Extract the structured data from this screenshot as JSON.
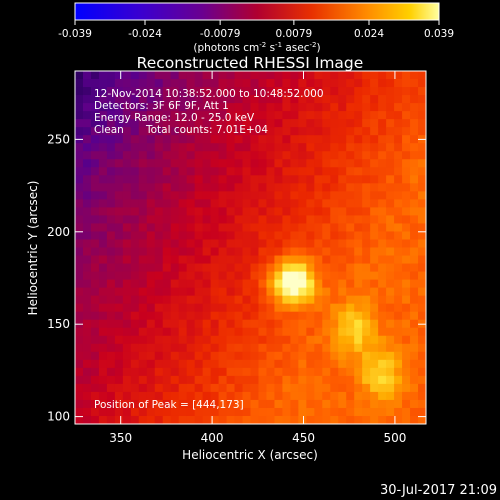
{
  "colorbar": {
    "ticks": [
      "-0.039",
      "-0.024",
      "-0.0079",
      "0.0079",
      "0.024",
      "0.039"
    ],
    "tick_values": [
      -0.039,
      -0.024,
      -0.0079,
      0.0079,
      0.024,
      0.039
    ],
    "range": [
      -0.039,
      0.039
    ],
    "unit_main": "(photons cm",
    "unit_exp1": "-2",
    "unit_mid": " s",
    "unit_exp2": "-1",
    "unit_tail": " asec",
    "unit_exp3": "-2",
    "unit_close": ")"
  },
  "title": "Reconstructed RHESSI Image",
  "info": {
    "line1": "12-Nov-2014 10:38:52.000 to 10:48:52.000",
    "line2": "Detectors: 3F 6F 9F, Att 1",
    "line3": "Energy Range: 12.0 - 25.0 keV",
    "line4a": "Clean",
    "line4b": "Total counts: 7.01E+04"
  },
  "peak_text": "Position of Peak = [444,173]",
  "footer_date": "30-Jul-2017 21:09",
  "chart_data": {
    "type": "heatmap",
    "title": "Reconstructed RHESSI Image",
    "xlabel": "Heliocentric X (arcsec)",
    "ylabel": "Heliocentric Y (arcsec)",
    "xlim": [
      325,
      517
    ],
    "ylim": [
      96,
      287
    ],
    "x_ticks": [
      350,
      400,
      450,
      500
    ],
    "y_ticks": [
      100,
      150,
      200,
      250
    ],
    "colorbar_range": [
      -0.039,
      0.039
    ],
    "peak": {
      "x": 444,
      "y": 173
    },
    "secondary_sources": [
      {
        "x": 478,
        "y": 148
      },
      {
        "x": 492,
        "y": 123
      }
    ]
  },
  "colors": {
    "background": "#000000",
    "axes": "#ffffff"
  }
}
